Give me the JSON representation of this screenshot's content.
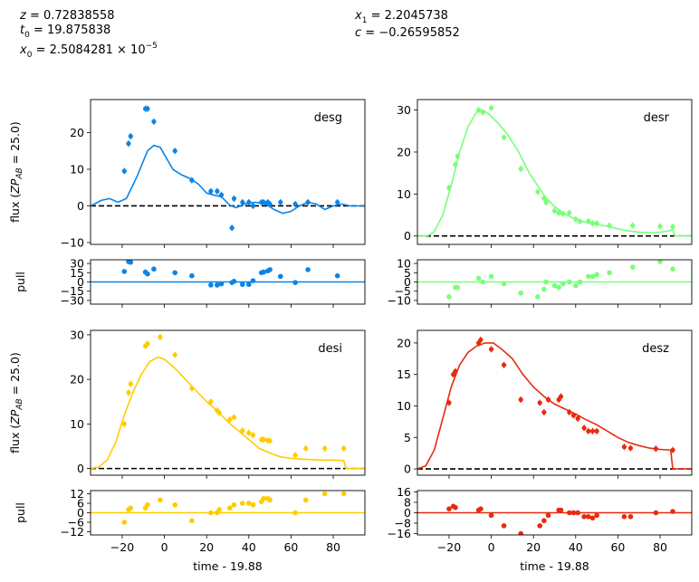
{
  "header": {
    "left": [
      {
        "sym": "z",
        "sub": "",
        "eq": " = 0.72838558"
      },
      {
        "sym": "t",
        "sub": "0",
        "eq": " = 19.875838"
      },
      {
        "sym": "x",
        "sub": "0",
        "eq": " = 2.5084281 × 10",
        "sup": "−5"
      }
    ],
    "right": [
      {
        "sym": "x",
        "sub": "1",
        "eq": " = 2.2045738"
      },
      {
        "sym": "c",
        "sub": "",
        "eq": " = −0.26595852"
      }
    ]
  },
  "labels": {
    "flux_ylabel": "flux (ZP",
    "flux_ylabel_sub": "AB",
    "flux_ylabel_end": " = 25.0)",
    "pull_ylabel": "pull",
    "xlabel": "time - 19.88"
  },
  "chart_data": [
    {
      "type": "scatter",
      "band": "desg",
      "color": "#0a84e8",
      "xlim": [
        -35,
        95
      ],
      "ylim": [
        -10.5,
        29
      ],
      "yticks": [
        -10,
        0,
        10,
        20
      ],
      "xticks": [
        -20,
        0,
        20,
        40,
        60,
        80
      ],
      "points": [
        [
          -19,
          9.5
        ],
        [
          -17,
          17
        ],
        [
          -16,
          19
        ],
        [
          -9,
          26.5
        ],
        [
          -8,
          26.5
        ],
        [
          -5,
          23
        ],
        [
          5,
          15
        ],
        [
          13,
          7
        ],
        [
          22,
          4
        ],
        [
          25,
          4
        ],
        [
          27,
          3
        ],
        [
          32,
          -6
        ],
        [
          33,
          2
        ],
        [
          37,
          1
        ],
        [
          40,
          1
        ],
        [
          42,
          0
        ],
        [
          46,
          1
        ],
        [
          47,
          1
        ],
        [
          49,
          1
        ],
        [
          50,
          0.5
        ],
        [
          55,
          1
        ],
        [
          62,
          0.5
        ],
        [
          68,
          1
        ],
        [
          82,
          1
        ]
      ],
      "model": [
        [
          -35,
          0
        ],
        [
          -30,
          1.5
        ],
        [
          -26,
          2
        ],
        [
          -22,
          1
        ],
        [
          -18,
          2
        ],
        [
          -13,
          8
        ],
        [
          -8,
          15
        ],
        [
          -5,
          16.5
        ],
        [
          -2,
          16
        ],
        [
          1,
          13
        ],
        [
          4,
          10
        ],
        [
          8,
          8.5
        ],
        [
          12,
          7.5
        ],
        [
          16,
          6
        ],
        [
          20,
          3.5
        ],
        [
          23,
          3
        ],
        [
          27,
          2.5
        ],
        [
          31,
          0.2
        ],
        [
          34,
          -0.5
        ],
        [
          38,
          0.5
        ],
        [
          43,
          1
        ],
        [
          48,
          0.5
        ],
        [
          52,
          -1
        ],
        [
          56,
          -2
        ],
        [
          60,
          -1.5
        ],
        [
          64,
          0
        ],
        [
          68,
          1
        ],
        [
          72,
          0.5
        ],
        [
          76,
          -1
        ],
        [
          80,
          0
        ],
        [
          84,
          0.5
        ],
        [
          88,
          0
        ],
        [
          95,
          0
        ]
      ],
      "pull": {
        "ylim": [
          -36,
          36
        ],
        "yticks": [
          -30,
          -15,
          0,
          15,
          30
        ],
        "points": [
          [
            -19,
            17
          ],
          [
            -17,
            33
          ],
          [
            -16,
            32
          ],
          [
            -9,
            16
          ],
          [
            -8,
            13
          ],
          [
            -5,
            21
          ],
          [
            5,
            15
          ],
          [
            13,
            10
          ],
          [
            22,
            -5
          ],
          [
            25,
            -5
          ],
          [
            27,
            -3
          ],
          [
            32,
            -1
          ],
          [
            33,
            1
          ],
          [
            37,
            -4
          ],
          [
            40,
            -4
          ],
          [
            42,
            2
          ],
          [
            46,
            15
          ],
          [
            47,
            16
          ],
          [
            49,
            18
          ],
          [
            50,
            20
          ],
          [
            55,
            9
          ],
          [
            62,
            -1
          ],
          [
            68,
            20
          ],
          [
            82,
            10
          ]
        ]
      }
    },
    {
      "type": "scatter",
      "band": "desr",
      "color": "#78ff78",
      "xlim": [
        -35,
        95
      ],
      "ylim": [
        -2,
        32.5
      ],
      "yticks": [
        0,
        10,
        20,
        30
      ],
      "xticks": [
        -20,
        0,
        20,
        40,
        60,
        80
      ],
      "points": [
        [
          -20,
          11.5
        ],
        [
          -17,
          17
        ],
        [
          -16,
          19
        ],
        [
          -6,
          30
        ],
        [
          -4,
          29.5
        ],
        [
          0,
          30.5
        ],
        [
          6,
          23.5
        ],
        [
          14,
          16
        ],
        [
          22,
          10.5
        ],
        [
          25,
          9
        ],
        [
          26,
          8
        ],
        [
          30,
          6
        ],
        [
          32,
          5.5
        ],
        [
          34,
          5.3
        ],
        [
          37,
          5.5
        ],
        [
          40,
          4
        ],
        [
          42,
          3.5
        ],
        [
          46,
          3.5
        ],
        [
          48,
          3
        ],
        [
          50,
          3
        ],
        [
          56,
          2.5
        ],
        [
          67,
          2.5
        ],
        [
          80,
          2.3
        ],
        [
          86,
          2.2
        ]
      ],
      "model": [
        [
          -35,
          0
        ],
        [
          -30,
          0.1
        ],
        [
          -27,
          1
        ],
        [
          -23,
          5
        ],
        [
          -19,
          12
        ],
        [
          -15,
          20
        ],
        [
          -11,
          26
        ],
        [
          -7,
          29.5
        ],
        [
          -4,
          30
        ],
        [
          -1,
          29
        ],
        [
          3,
          27
        ],
        [
          8,
          24
        ],
        [
          13,
          20
        ],
        [
          18,
          15
        ],
        [
          22,
          12
        ],
        [
          26,
          9
        ],
        [
          30,
          7
        ],
        [
          35,
          5.2
        ],
        [
          40,
          4
        ],
        [
          45,
          3.2
        ],
        [
          50,
          2.8
        ],
        [
          55,
          2.3
        ],
        [
          60,
          1.7
        ],
        [
          65,
          1.2
        ],
        [
          70,
          0.9
        ],
        [
          75,
          0.8
        ],
        [
          80,
          0.9
        ],
        [
          84,
          1.2
        ],
        [
          86,
          1.5
        ],
        [
          87,
          0
        ],
        [
          95,
          0
        ]
      ],
      "pull": {
        "ylim": [
          -12,
          12
        ],
        "yticks": [
          -10,
          -5,
          0,
          5,
          10
        ],
        "points": [
          [
            -20,
            -8
          ],
          [
            -17,
            -3
          ],
          [
            -16,
            -3
          ],
          [
            -6,
            2
          ],
          [
            -4,
            0
          ],
          [
            0,
            3
          ],
          [
            6,
            -1
          ],
          [
            14,
            -6
          ],
          [
            22,
            -8
          ],
          [
            25,
            -4
          ],
          [
            26,
            0
          ],
          [
            30,
            -2
          ],
          [
            32,
            -3
          ],
          [
            34,
            -1
          ],
          [
            37,
            0
          ],
          [
            40,
            -2
          ],
          [
            42,
            0
          ],
          [
            46,
            3
          ],
          [
            48,
            3
          ],
          [
            50,
            4
          ],
          [
            56,
            5
          ],
          [
            67,
            8
          ],
          [
            80,
            11
          ],
          [
            86,
            7
          ]
        ]
      }
    },
    {
      "type": "scatter",
      "band": "desi",
      "color": "#ffcc00",
      "xlim": [
        -35,
        95
      ],
      "ylim": [
        -1.5,
        31
      ],
      "yticks": [
        0,
        10,
        20,
        30
      ],
      "xticks": [
        -20,
        0,
        20,
        40,
        60,
        80
      ],
      "points": [
        [
          -19,
          10
        ],
        [
          -17,
          17
        ],
        [
          -16,
          19
        ],
        [
          -9,
          27.5
        ],
        [
          -8,
          28
        ],
        [
          -2,
          29.5
        ],
        [
          5,
          25.5
        ],
        [
          13,
          18
        ],
        [
          22,
          15
        ],
        [
          25,
          13
        ],
        [
          26,
          12.5
        ],
        [
          31,
          11
        ],
        [
          33,
          11.5
        ],
        [
          37,
          8.5
        ],
        [
          40,
          8
        ],
        [
          42,
          7.5
        ],
        [
          46,
          6.5
        ],
        [
          47,
          6.5
        ],
        [
          49,
          6.3
        ],
        [
          50,
          6.2
        ],
        [
          62,
          3
        ],
        [
          67,
          4.5
        ],
        [
          76,
          4.5
        ],
        [
          85,
          4.5
        ]
      ],
      "model": [
        [
          -35,
          0
        ],
        [
          -31,
          0.3
        ],
        [
          -27,
          2
        ],
        [
          -23,
          6
        ],
        [
          -19,
          12
        ],
        [
          -15,
          17
        ],
        [
          -11,
          21
        ],
        [
          -7,
          24
        ],
        [
          -3,
          25
        ],
        [
          0,
          24.5
        ],
        [
          5,
          22.5
        ],
        [
          10,
          20
        ],
        [
          15,
          17.5
        ],
        [
          20,
          15
        ],
        [
          25,
          13
        ],
        [
          30,
          10.5
        ],
        [
          35,
          8.5
        ],
        [
          40,
          6.5
        ],
        [
          45,
          4.5
        ],
        [
          50,
          3.5
        ],
        [
          55,
          2.6
        ],
        [
          60,
          2.3
        ],
        [
          65,
          2.1
        ],
        [
          70,
          2
        ],
        [
          75,
          1.9
        ],
        [
          80,
          1.9
        ],
        [
          85,
          1.8
        ],
        [
          86,
          0
        ],
        [
          95,
          0
        ]
      ],
      "pull": {
        "ylim": [
          -14,
          14
        ],
        "yticks": [
          -12,
          -6,
          0,
          6,
          12
        ],
        "points": [
          [
            -19,
            -6
          ],
          [
            -17,
            2
          ],
          [
            -16,
            3
          ],
          [
            -9,
            3
          ],
          [
            -8,
            5
          ],
          [
            -2,
            8
          ],
          [
            5,
            5
          ],
          [
            13,
            -5
          ],
          [
            22,
            0
          ],
          [
            25,
            0
          ],
          [
            26,
            2
          ],
          [
            31,
            3
          ],
          [
            33,
            5
          ],
          [
            37,
            6
          ],
          [
            40,
            6
          ],
          [
            42,
            5
          ],
          [
            46,
            7
          ],
          [
            47,
            9
          ],
          [
            49,
            9
          ],
          [
            50,
            8
          ],
          [
            62,
            0
          ],
          [
            67,
            8
          ],
          [
            76,
            12
          ],
          [
            85,
            12
          ]
        ]
      }
    },
    {
      "type": "scatter",
      "band": "desz",
      "color": "#e82a0e",
      "xlim": [
        -35,
        95
      ],
      "ylim": [
        -1,
        22
      ],
      "yticks": [
        0,
        5,
        10,
        15,
        20
      ],
      "xticks": [
        -20,
        0,
        20,
        40,
        60,
        80
      ],
      "points": [
        [
          -20,
          10.5
        ],
        [
          -18,
          15
        ],
        [
          -17,
          15.5
        ],
        [
          -6,
          20
        ],
        [
          -5,
          20.5
        ],
        [
          0,
          19
        ],
        [
          6,
          16.5
        ],
        [
          14,
          11
        ],
        [
          23,
          10.5
        ],
        [
          25,
          9
        ],
        [
          27,
          11
        ],
        [
          32,
          11
        ],
        [
          33,
          11.5
        ],
        [
          37,
          9
        ],
        [
          39,
          8.5
        ],
        [
          41,
          8
        ],
        [
          44,
          6.5
        ],
        [
          46,
          6
        ],
        [
          48,
          6
        ],
        [
          50,
          6
        ],
        [
          63,
          3.5
        ],
        [
          66,
          3.3
        ],
        [
          78,
          3.2
        ],
        [
          86,
          3
        ]
      ],
      "model": [
        [
          -35,
          0
        ],
        [
          -31,
          0.5
        ],
        [
          -27,
          3
        ],
        [
          -23,
          8
        ],
        [
          -19,
          13
        ],
        [
          -15,
          16.5
        ],
        [
          -11,
          18.5
        ],
        [
          -7,
          19.5
        ],
        [
          -3,
          20
        ],
        [
          1,
          20
        ],
        [
          5,
          19
        ],
        [
          10,
          17.5
        ],
        [
          15,
          15
        ],
        [
          20,
          13
        ],
        [
          25,
          11.5
        ],
        [
          30,
          10.3
        ],
        [
          35,
          9.5
        ],
        [
          40,
          8.7
        ],
        [
          45,
          7.8
        ],
        [
          50,
          7
        ],
        [
          55,
          6
        ],
        [
          60,
          5
        ],
        [
          65,
          4.2
        ],
        [
          70,
          3.7
        ],
        [
          75,
          3.3
        ],
        [
          80,
          3.1
        ],
        [
          85,
          3
        ],
        [
          86,
          0
        ],
        [
          95,
          0
        ]
      ],
      "pull": {
        "ylim": [
          -17,
          17
        ],
        "yticks": [
          -16,
          -8,
          0,
          8,
          16
        ],
        "points": [
          [
            -20,
            3
          ],
          [
            -18,
            5
          ],
          [
            -17,
            4
          ],
          [
            -6,
            2
          ],
          [
            -5,
            3
          ],
          [
            0,
            -2
          ],
          [
            6,
            -10
          ],
          [
            14,
            -16
          ],
          [
            23,
            -10
          ],
          [
            25,
            -6
          ],
          [
            27,
            -2
          ],
          [
            32,
            2
          ],
          [
            33,
            2
          ],
          [
            37,
            0
          ],
          [
            39,
            0
          ],
          [
            41,
            0
          ],
          [
            44,
            -3
          ],
          [
            46,
            -3
          ],
          [
            48,
            -4
          ],
          [
            50,
            -2
          ],
          [
            63,
            -3
          ],
          [
            66,
            -3
          ],
          [
            78,
            0
          ],
          [
            86,
            1
          ]
        ]
      }
    }
  ]
}
